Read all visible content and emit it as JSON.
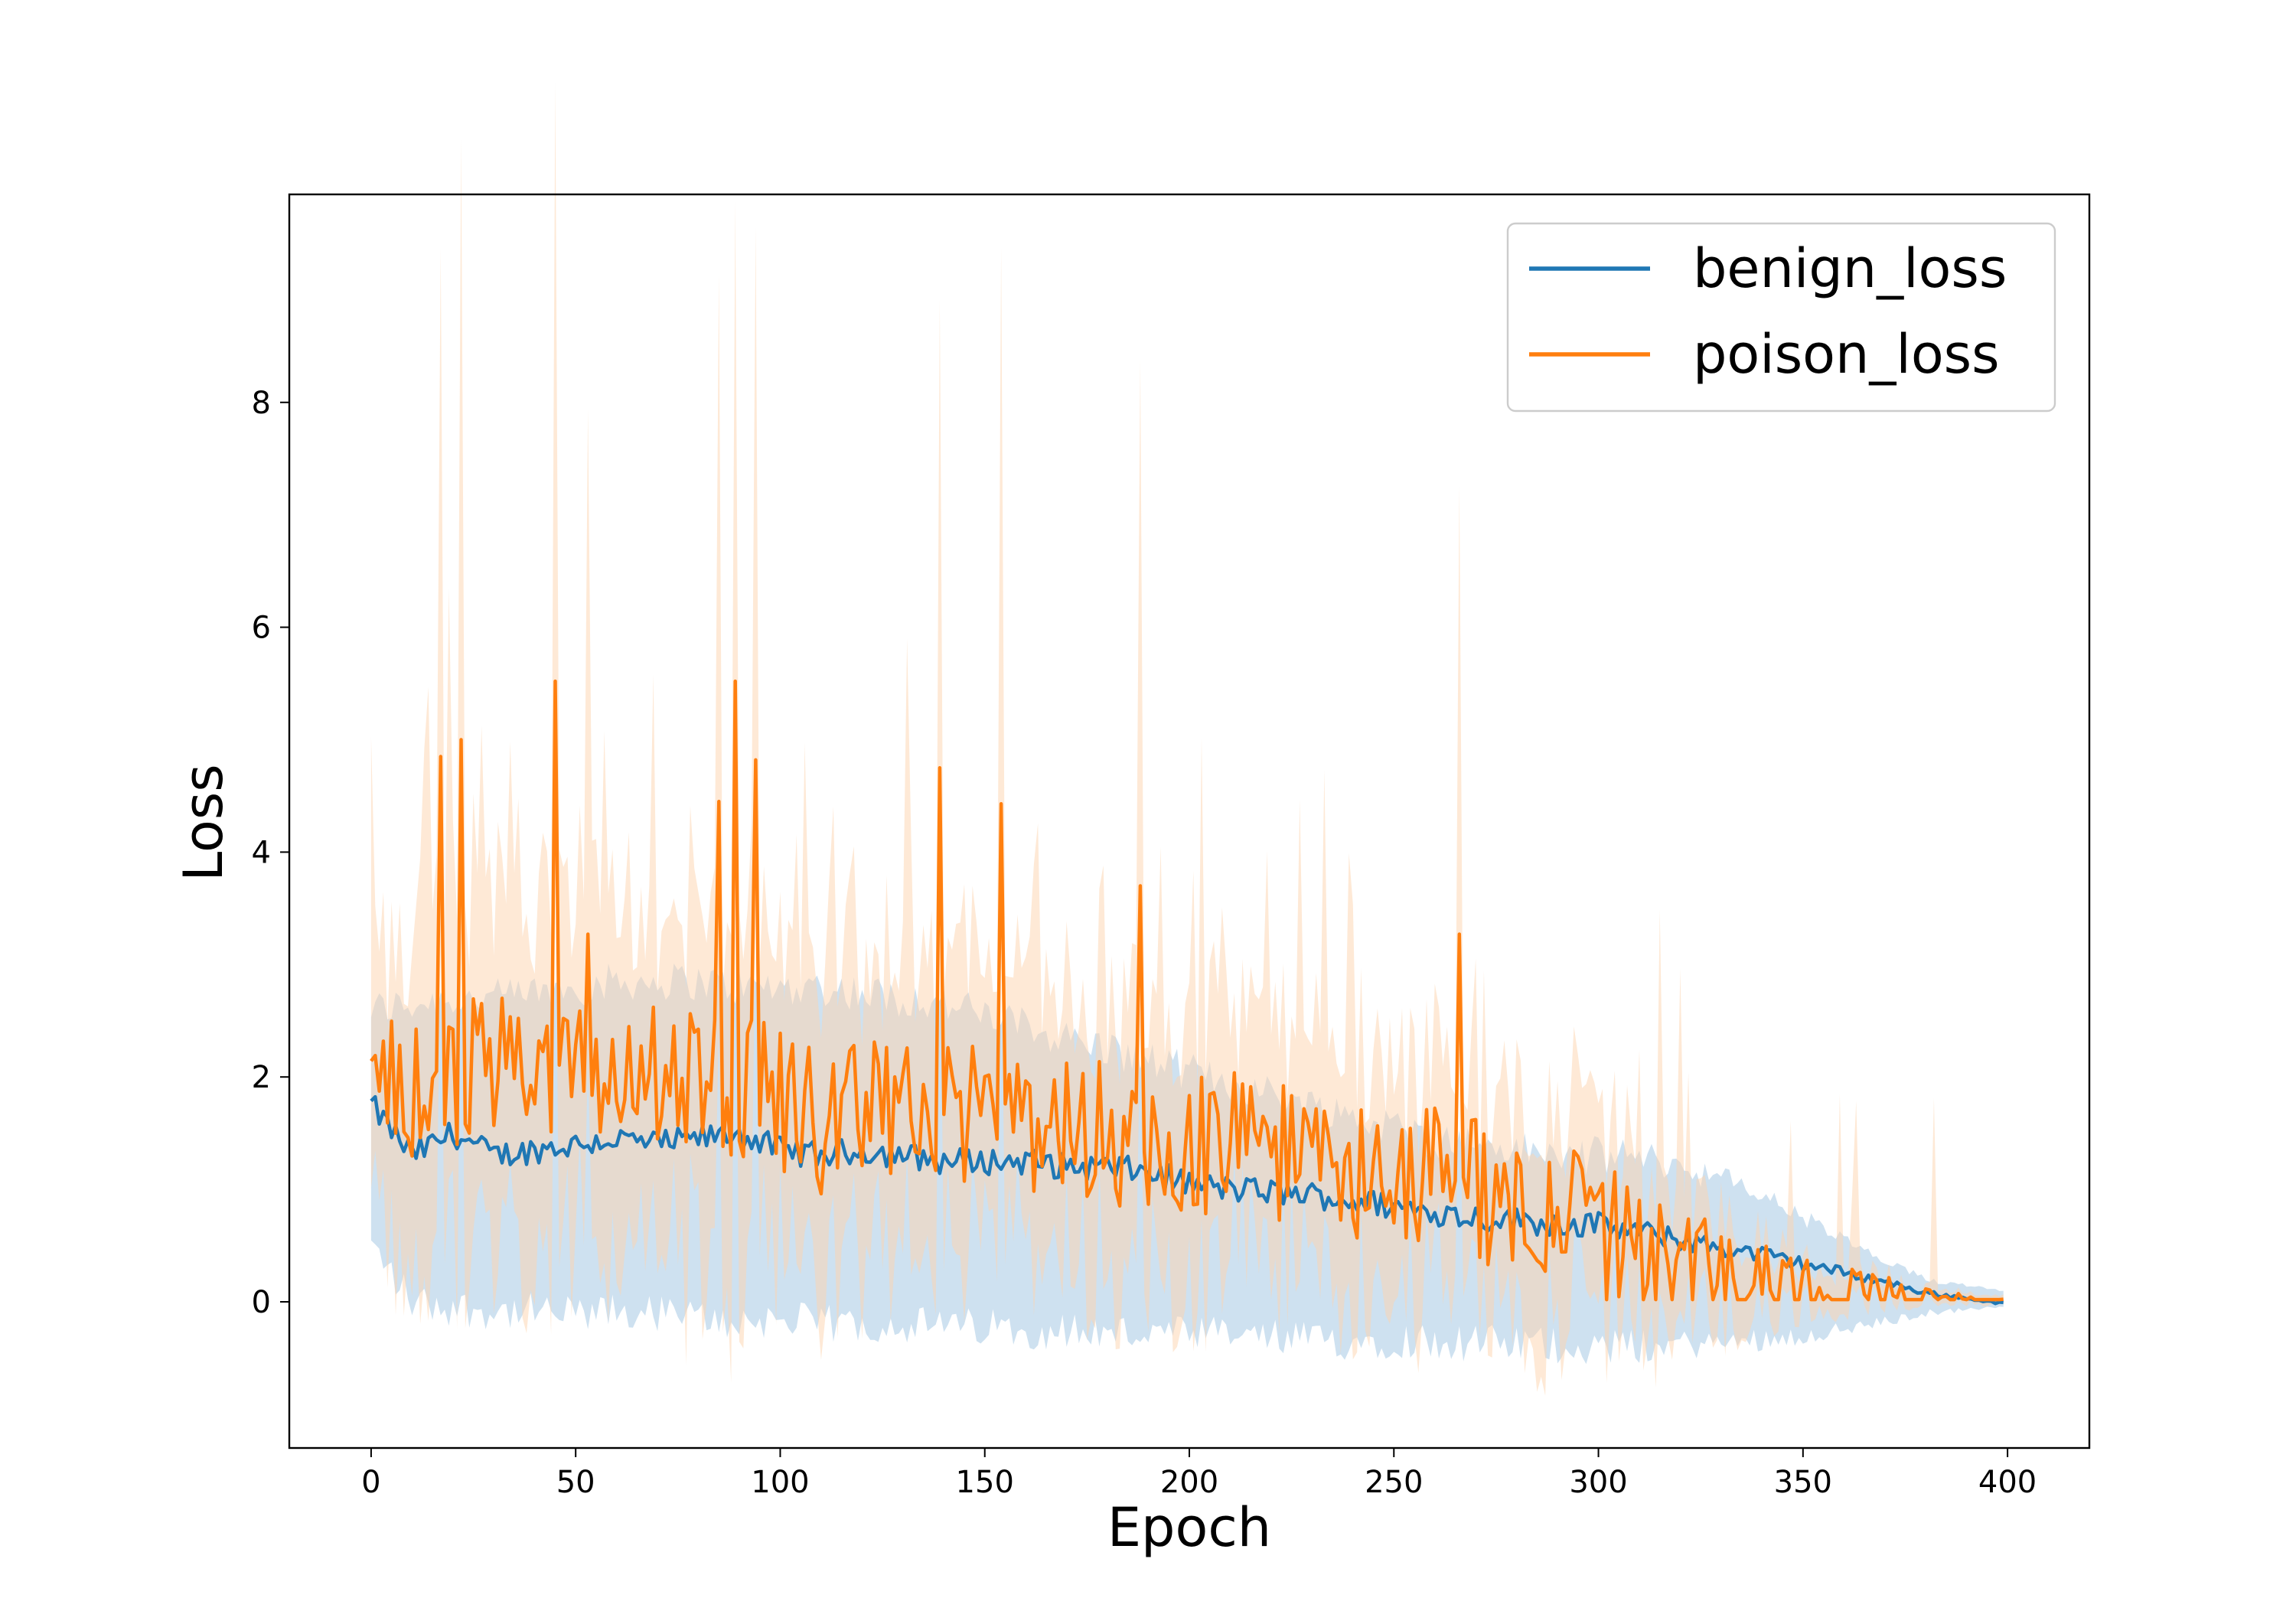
{
  "chart_data": {
    "type": "line",
    "title": "",
    "xlabel": "Epoch",
    "ylabel": "Loss",
    "xlim": [
      -20,
      420
    ],
    "ylim": [
      -1.3,
      9.85
    ],
    "xticks": [
      0,
      50,
      100,
      150,
      200,
      250,
      300,
      350,
      400
    ],
    "xtick_labels": [
      "0",
      "50",
      "100",
      "150",
      "200",
      "250",
      "300",
      "350",
      "400"
    ],
    "yticks": [
      0,
      2,
      4,
      6,
      8
    ],
    "ytick_labels": [
      "0",
      "2",
      "4",
      "6",
      "8"
    ],
    "grid": false,
    "legend_position": "top-right",
    "x_range": [
      0,
      399
    ],
    "anchor_step": 10,
    "series": [
      {
        "name": "benign_loss",
        "color": "#1f77b4",
        "band_color": "#a6c8e4",
        "anchors_mean": [
          1.75,
          1.3,
          1.5,
          1.3,
          1.35,
          1.4,
          1.45,
          1.4,
          1.45,
          1.5,
          1.35,
          1.3,
          1.35,
          1.3,
          1.25,
          1.25,
          1.25,
          1.2,
          1.2,
          1.15,
          1.05,
          1.0,
          0.98,
          0.95,
          0.9,
          0.85,
          0.8,
          0.75,
          0.72,
          0.7,
          0.68,
          0.62,
          0.55,
          0.48,
          0.42,
          0.34,
          0.26,
          0.18,
          0.08,
          0.03
        ],
        "anchors_upper": [
          2.6,
          2.65,
          2.7,
          2.7,
          2.75,
          2.8,
          2.85,
          2.85,
          2.85,
          2.8,
          2.8,
          2.8,
          2.75,
          2.7,
          2.65,
          2.55,
          2.45,
          2.35,
          2.25,
          2.15,
          2.05,
          1.95,
          1.85,
          1.75,
          1.65,
          1.55,
          1.45,
          1.4,
          1.35,
          1.3,
          1.3,
          1.3,
          1.2,
          1.1,
          0.95,
          0.75,
          0.55,
          0.35,
          0.2,
          0.15
        ],
        "anchors_lower": [
          0.5,
          0.0,
          -0.05,
          -0.08,
          -0.1,
          -0.12,
          -0.1,
          -0.1,
          -0.15,
          -0.18,
          -0.15,
          -0.2,
          -0.2,
          -0.2,
          -0.22,
          -0.22,
          -0.25,
          -0.25,
          -0.28,
          -0.28,
          -0.3,
          -0.3,
          -0.32,
          -0.35,
          -0.35,
          -0.33,
          -0.35,
          -0.37,
          -0.38,
          -0.38,
          -0.4,
          -0.4,
          -0.38,
          -0.37,
          -0.33,
          -0.3,
          -0.25,
          -0.18,
          -0.1,
          -0.07
        ],
        "jitter": 0.12
      },
      {
        "name": "poison_loss",
        "color": "#ff7f0e",
        "band_color": "#fdd3ad",
        "anchors_mean": [
          2.0,
          1.9,
          2.0,
          2.1,
          2.1,
          2.2,
          1.9,
          2.0,
          2.1,
          1.9,
          1.8,
          1.6,
          1.7,
          1.8,
          1.7,
          1.7,
          1.6,
          1.5,
          1.5,
          1.5,
          1.4,
          1.4,
          1.3,
          1.3,
          1.2,
          1.2,
          1.1,
          1.0,
          0.9,
          0.8,
          0.6,
          0.5,
          0.35,
          0.25,
          0.15,
          0.08,
          0.06,
          0.04,
          0.02,
          0.01
        ],
        "anchors_half_width": [
          1.0,
          1.5,
          1.6,
          1.6,
          1.6,
          1.5,
          1.5,
          1.4,
          1.6,
          1.6,
          1.3,
          1.3,
          1.2,
          1.3,
          1.2,
          1.2,
          1.1,
          1.2,
          1.1,
          1.2,
          1.1,
          1.0,
          1.0,
          1.0,
          1.0,
          0.95,
          0.9,
          0.9,
          0.9,
          0.9,
          0.8,
          0.7,
          0.55,
          0.4,
          0.3,
          0.2,
          0.15,
          0.1,
          0.06,
          0.05
        ],
        "jitter": 0.65,
        "spikes": [
          [
            17,
            4.85
          ],
          [
            22,
            5.0
          ],
          [
            45,
            5.52
          ],
          [
            53,
            3.27
          ],
          [
            85,
            4.45
          ],
          [
            89,
            5.52
          ],
          [
            94,
            4.82
          ],
          [
            139,
            4.75
          ],
          [
            154,
            4.43
          ],
          [
            188,
            3.7
          ],
          [
            266,
            3.27
          ]
        ]
      }
    ]
  }
}
